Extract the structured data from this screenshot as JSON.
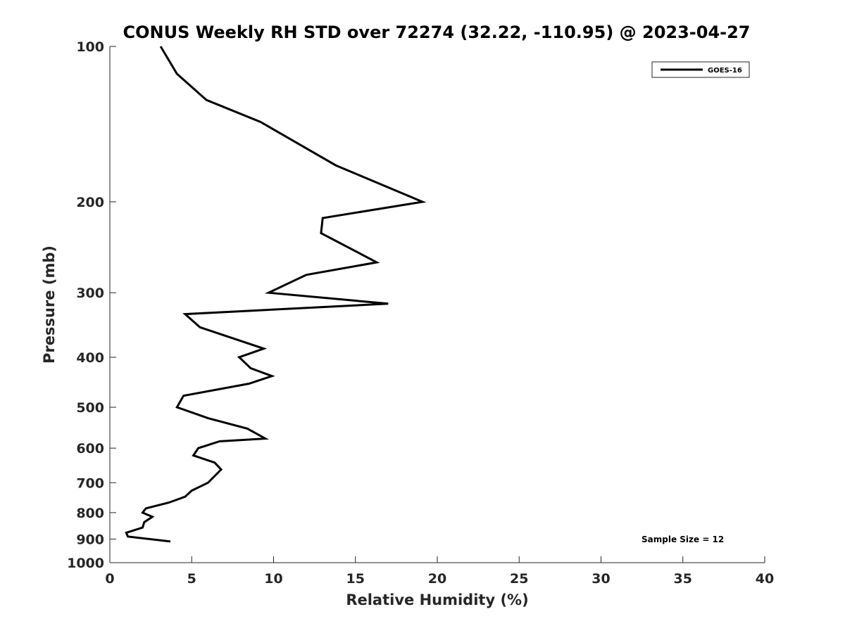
{
  "chart_data": {
    "type": "line",
    "title": "CONUS Weekly RH STD over 72274 (32.22, -110.95) @ 2023-04-27",
    "xlabel": "Relative Humidity (%)",
    "ylabel": "Pressure (mb)",
    "xlim": [
      0,
      40
    ],
    "ylim": [
      100,
      1000
    ],
    "y_scale": "log",
    "y_reversed": true,
    "xticks": [
      0,
      5,
      10,
      15,
      20,
      25,
      30,
      35,
      40
    ],
    "yticks": [
      100,
      200,
      300,
      400,
      500,
      600,
      700,
      800,
      900,
      1000
    ],
    "grid": false,
    "legend_position": "top-right",
    "series": [
      {
        "name": "GOES-16",
        "color": "#000000",
        "x": [
          3.1,
          4.1,
          5.9,
          9.2,
          13.8,
          19.1,
          13.0,
          12.9,
          16.3,
          12.0,
          9.7,
          17.0,
          4.6,
          5.5,
          9.4,
          7.9,
          8.6,
          9.9,
          8.5,
          4.5,
          4.1,
          6.0,
          8.4,
          9.5,
          6.7,
          5.4,
          5.1,
          6.4,
          6.8,
          6.0,
          5.0,
          4.6,
          3.6,
          2.2,
          2.0,
          2.6,
          2.1,
          2.0,
          1.0,
          1.1,
          3.7
        ],
        "y": [
          100,
          113,
          127,
          140,
          170,
          200,
          215,
          230,
          262,
          277,
          300,
          315,
          330,
          350,
          385,
          400,
          420,
          435,
          450,
          475,
          500,
          525,
          550,
          575,
          582,
          600,
          620,
          640,
          660,
          700,
          725,
          745,
          765,
          785,
          800,
          815,
          835,
          855,
          875,
          890,
          910
        ]
      }
    ]
  },
  "annotations": {
    "sample_size": "Sample Size = 12"
  }
}
